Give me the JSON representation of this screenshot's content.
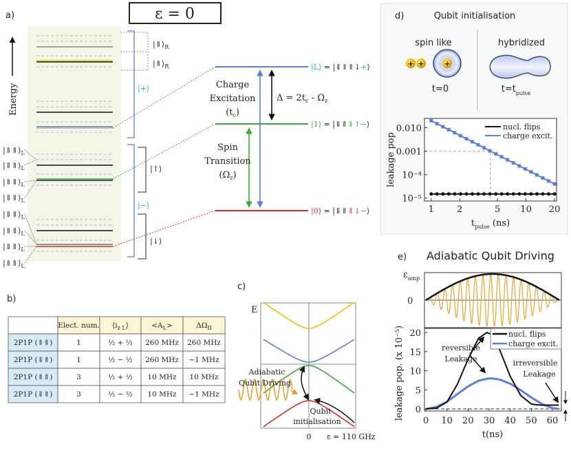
{
  "panel_a": {
    "label": "a)",
    "epsilon_title": "ε = 0",
    "energy_axis": "Energy",
    "left_states": [
      "|⇑⇑⟩",
      "|⇓⇑⟩",
      "|⇑⇓⟩",
      "|⇓⇓⟩",
      "|⇓⇓⟩",
      "|⇑⇓⟩",
      "|⇓⇑⟩",
      "|⇑⇑⟩"
    ],
    "left_sub": "L",
    "right_states": {
      "down_R": "|⇓⟩",
      "up_R": "|⇑⟩",
      "sub_R": "R",
      "plus": "|+⟩",
      "minus": "|−⟩",
      "up": "|↑⟩",
      "down": "|↓⟩"
    },
    "levels": {
      "L": {
        "ket": "|L⟩",
        "eq": " = |⇓⇑⇑↓",
        "sign": "+",
        "close": "⟩"
      },
      "one": {
        "ket": "|1⟩",
        "eq": " = |⇓⇑",
        "colored": "⇓↑−",
        "close": "⟩"
      },
      "zero": {
        "ket": "|0⟩",
        "eq": " = |⇓⇑",
        "colored": "⇑↓",
        "sign": "−",
        "close": "⟩"
      }
    },
    "charge_excitation": [
      "Charge",
      "Excitation",
      "(t",
      "c",
      ")"
    ],
    "delta": {
      "text": "Δ = 2t",
      "sub1": "c",
      "mid": " - Ω",
      "sub2": "z"
    },
    "spin_transition": [
      "Spin",
      "Transition",
      "(Ω",
      "z",
      ")"
    ],
    "colors": {
      "blue": "#5b7fdc",
      "green": "#3aaa35",
      "red": "#e8262b",
      "yellow": "#f2c200",
      "cyan": "#29a9e0",
      "panel_bg": "#f2f6e6"
    }
  },
  "panel_b": {
    "label": "b)",
    "headers": [
      "",
      "Elect. num.",
      "⟨i",
      "<A",
      "ΔΩ"
    ],
    "header_subs": [
      "",
      "",
      "z L",
      "L",
      "II"
    ],
    "header_close": [
      "",
      "",
      "⟩",
      ">",
      ""
    ],
    "rows": [
      [
        "2P1P (⇑⇑)",
        "1",
        "½ + ½",
        "260 MHz",
        "260 MHz"
      ],
      [
        "2P1P (⇓⇑)",
        "1",
        "½ − ½",
        "260 MHz",
        "~1 MHz"
      ],
      [
        "2P1P (⇑⇑)",
        "3",
        "½ + ½",
        "10 MHz",
        "10 MHz"
      ],
      [
        "2P1P (⇓⇑)",
        "3",
        "½ − ½",
        "10 MHz",
        "~1 MHz"
      ]
    ],
    "colors": {
      "header_bg": "#fbf5d3",
      "row_header_bg": "#d5ecf6"
    }
  },
  "panel_c": {
    "label": "c)",
    "y_label": "E",
    "x_zero": "0",
    "x_right": "ε = 110 GHz",
    "driving_label": [
      "Adiabatic",
      "Qubit Driving"
    ],
    "init_label": [
      "Qubit",
      "initialisation"
    ]
  },
  "panel_d": {
    "label": "d)",
    "title": "Qubit initialisation",
    "left_caption": "spin like",
    "right_caption": "hybridized",
    "left_time": "t=0",
    "right_time": "t=t",
    "right_time_sub": "pulse",
    "chart_data": {
      "type": "line",
      "xscale": "log",
      "yscale": "log",
      "xlabel": "t",
      "xlabel_sub": "pulse",
      "xlabel_unit": " (ns)",
      "ylabel": "leakage pop",
      "xlim": [
        0.85,
        21
      ],
      "ylim": [
        7.5e-06,
        0.025
      ],
      "x_ticks": [
        1,
        2,
        5,
        10,
        20
      ],
      "x_tick_labels": [
        "1",
        "2",
        "5",
        "10",
        "20"
      ],
      "y_ticks": [
        0.01,
        0.001,
        0.0001,
        1e-05
      ],
      "y_tick_labels": [
        "0.010",
        "0.001",
        "10⁻⁴",
        "10⁻⁵"
      ],
      "legend": "top-right",
      "guide": {
        "x": 4.2,
        "y": 0.001
      },
      "series": [
        {
          "name": "nucl. flips",
          "color": "#111111",
          "marker": "circle",
          "x_range": [
            1,
            20
          ],
          "n_points": 22,
          "y_start": 1.5e-05,
          "y_end": 1.5e-05
        },
        {
          "name": "charge excit.",
          "color": "#5b7fdc",
          "marker": "square",
          "x_range": [
            1,
            20
          ],
          "n_points": 22,
          "y_start": 0.02,
          "y_end": 4e-05
        }
      ]
    }
  },
  "panel_e": {
    "label": "e)",
    "title": "Adiabatic Qubit Driving",
    "top_ylabel": "ε",
    "top_ylabel_sub": "amp",
    "top_zero": "0",
    "annotations": {
      "reversible": [
        "reversible",
        "Leakage"
      ],
      "irreversible": [
        "irreversible",
        "Leakage"
      ]
    },
    "chart_data": {
      "type": "line",
      "xlabel": "t(ns)",
      "ylabel": "leakage pop. (x 10⁻⁵)",
      "xlim": [
        0,
        64.5
      ],
      "ylim": [
        -1,
        21
      ],
      "x_ticks": [
        0,
        10,
        20,
        30,
        40,
        50,
        60
      ],
      "y_ticks": [
        0,
        5,
        10,
        15,
        20
      ],
      "legend": "top-right",
      "series": [
        {
          "name": "nucl. flips",
          "color": "#111111",
          "x": [
            0,
            5,
            10,
            15,
            20,
            25,
            29,
            32,
            35,
            40,
            45,
            50,
            52,
            55,
            60,
            63
          ],
          "y": [
            0,
            0.2,
            1.8,
            6.5,
            13,
            18.5,
            20,
            19.3,
            15.5,
            8.5,
            3.5,
            1.3,
            1.1,
            1.0,
            1.0,
            1.0
          ]
        },
        {
          "name": "charge excit.",
          "color": "#5b7fdc",
          "x": [
            0,
            5,
            10,
            15,
            20,
            25,
            30,
            31,
            35,
            40,
            45,
            50,
            55,
            60,
            63
          ],
          "y": [
            0,
            0.5,
            1.9,
            3.9,
            5.9,
            7.4,
            8.0,
            8.0,
            7.7,
            6.6,
            4.9,
            3.0,
            1.3,
            0.2,
            0
          ]
        }
      ]
    }
  }
}
